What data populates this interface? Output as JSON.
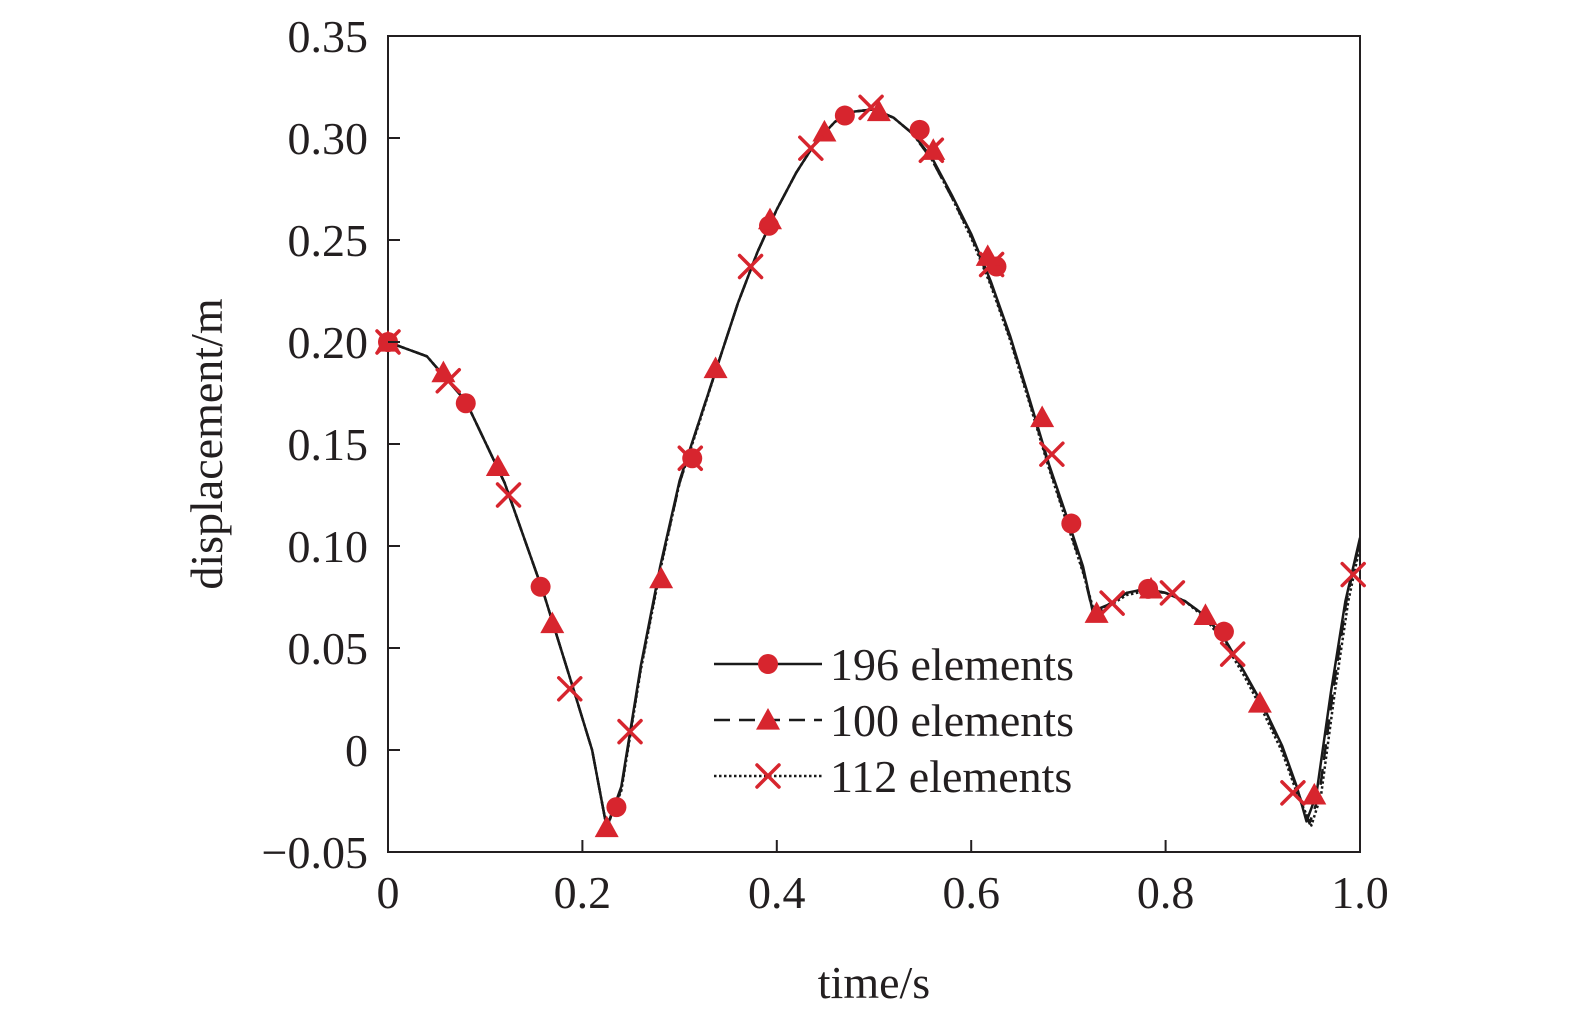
{
  "chart_data": {
    "type": "line",
    "title": "",
    "xlabel": "time/s",
    "ylabel": "displacement/m",
    "xlim": [
      0,
      1.0
    ],
    "ylim": [
      -0.05,
      0.35
    ],
    "x_ticks": [
      "0",
      "0.2",
      "0.4",
      "0.6",
      "0.8",
      "1.0"
    ],
    "x_tick_values": [
      0,
      0.2,
      0.4,
      0.6,
      0.8,
      1.0
    ],
    "y_ticks": [
      "−0.05",
      "0",
      "0.05",
      "0.10",
      "0.15",
      "0.20",
      "0.25",
      "0.30",
      "0.35"
    ],
    "y_tick_values": [
      -0.05,
      0,
      0.05,
      0.1,
      0.15,
      0.2,
      0.25,
      0.3,
      0.35
    ],
    "grid": false,
    "legend_position": "bottom-right",
    "marker_color": "#d7252e",
    "line_color": "#1a1a1a",
    "series": [
      {
        "name": "196 elements",
        "line_style": "solid",
        "marker": "circle",
        "curve": [
          [
            0,
            0.2
          ],
          [
            0.04,
            0.193
          ],
          [
            0.08,
            0.171
          ],
          [
            0.12,
            0.131
          ],
          [
            0.16,
            0.077
          ],
          [
            0.19,
            0.031
          ],
          [
            0.21,
            0.0
          ],
          [
            0.225,
            -0.038
          ],
          [
            0.24,
            -0.018
          ],
          [
            0.26,
            0.041
          ],
          [
            0.28,
            0.09
          ],
          [
            0.3,
            0.132
          ],
          [
            0.32,
            0.161
          ],
          [
            0.34,
            0.19
          ],
          [
            0.36,
            0.219
          ],
          [
            0.38,
            0.244
          ],
          [
            0.4,
            0.265
          ],
          [
            0.42,
            0.283
          ],
          [
            0.44,
            0.298
          ],
          [
            0.46,
            0.308
          ],
          [
            0.48,
            0.313
          ],
          [
            0.5,
            0.314
          ],
          [
            0.52,
            0.31
          ],
          [
            0.54,
            0.302
          ],
          [
            0.56,
            0.29
          ],
          [
            0.58,
            0.272
          ],
          [
            0.6,
            0.253
          ],
          [
            0.62,
            0.23
          ],
          [
            0.64,
            0.203
          ],
          [
            0.66,
            0.172
          ],
          [
            0.68,
            0.14
          ],
          [
            0.7,
            0.112
          ],
          [
            0.715,
            0.09
          ],
          [
            0.725,
            0.068
          ],
          [
            0.74,
            0.071
          ],
          [
            0.76,
            0.077
          ],
          [
            0.78,
            0.079
          ],
          [
            0.8,
            0.077
          ],
          [
            0.82,
            0.073
          ],
          [
            0.84,
            0.066
          ],
          [
            0.86,
            0.055
          ],
          [
            0.88,
            0.039
          ],
          [
            0.9,
            0.022
          ],
          [
            0.92,
            0.002
          ],
          [
            0.935,
            -0.018
          ],
          [
            0.945,
            -0.035
          ],
          [
            0.955,
            -0.022
          ],
          [
            0.97,
            0.028
          ],
          [
            0.985,
            0.073
          ],
          [
            1.0,
            0.104
          ]
        ],
        "markers": [
          [
            0,
            0.2
          ],
          [
            0.08,
            0.17
          ],
          [
            0.157,
            0.08
          ],
          [
            0.235,
            -0.028
          ],
          [
            0.313,
            0.143
          ],
          [
            0.392,
            0.257
          ],
          [
            0.47,
            0.311
          ],
          [
            0.547,
            0.304
          ],
          [
            0.626,
            0.237
          ],
          [
            0.703,
            0.111
          ],
          [
            0.782,
            0.079
          ],
          [
            0.86,
            0.058
          ]
        ]
      },
      {
        "name": "100 elements",
        "line_style": "dashed",
        "marker": "triangle",
        "curve": [
          [
            0,
            0.2
          ],
          [
            0.04,
            0.193
          ],
          [
            0.08,
            0.171
          ],
          [
            0.12,
            0.131
          ],
          [
            0.16,
            0.077
          ],
          [
            0.19,
            0.031
          ],
          [
            0.21,
            0.0
          ],
          [
            0.225,
            -0.038
          ],
          [
            0.24,
            -0.019
          ],
          [
            0.26,
            0.04
          ],
          [
            0.28,
            0.089
          ],
          [
            0.3,
            0.131
          ],
          [
            0.32,
            0.161
          ],
          [
            0.34,
            0.19
          ],
          [
            0.36,
            0.219
          ],
          [
            0.38,
            0.244
          ],
          [
            0.4,
            0.265
          ],
          [
            0.42,
            0.283
          ],
          [
            0.44,
            0.298
          ],
          [
            0.46,
            0.308
          ],
          [
            0.48,
            0.313
          ],
          [
            0.5,
            0.314
          ],
          [
            0.52,
            0.31
          ],
          [
            0.54,
            0.302
          ],
          [
            0.56,
            0.289
          ],
          [
            0.58,
            0.271
          ],
          [
            0.6,
            0.252
          ],
          [
            0.62,
            0.229
          ],
          [
            0.64,
            0.202
          ],
          [
            0.66,
            0.171
          ],
          [
            0.68,
            0.139
          ],
          [
            0.7,
            0.11
          ],
          [
            0.715,
            0.088
          ],
          [
            0.725,
            0.068
          ],
          [
            0.74,
            0.071
          ],
          [
            0.76,
            0.077
          ],
          [
            0.78,
            0.079
          ],
          [
            0.8,
            0.077
          ],
          [
            0.82,
            0.073
          ],
          [
            0.84,
            0.066
          ],
          [
            0.86,
            0.055
          ],
          [
            0.88,
            0.039
          ],
          [
            0.9,
            0.021
          ],
          [
            0.92,
            0.001
          ],
          [
            0.935,
            -0.019
          ],
          [
            0.948,
            -0.036
          ],
          [
            0.958,
            -0.022
          ],
          [
            0.972,
            0.028
          ],
          [
            0.986,
            0.073
          ],
          [
            1.0,
            0.103
          ]
        ],
        "markers": [
          [
            0,
            0.2
          ],
          [
            0.057,
            0.185
          ],
          [
            0.113,
            0.139
          ],
          [
            0.169,
            0.062
          ],
          [
            0.225,
            -0.038
          ],
          [
            0.281,
            0.084
          ],
          [
            0.337,
            0.187
          ],
          [
            0.393,
            0.26
          ],
          [
            0.449,
            0.303
          ],
          [
            0.505,
            0.313
          ],
          [
            0.561,
            0.294
          ],
          [
            0.617,
            0.242
          ],
          [
            0.673,
            0.163
          ],
          [
            0.729,
            0.067
          ],
          [
            0.785,
            0.079
          ],
          [
            0.841,
            0.066
          ],
          [
            0.897,
            0.023
          ],
          [
            0.953,
            -0.022
          ]
        ]
      },
      {
        "name": "112 elements",
        "line_style": "dotted",
        "marker": "x",
        "curve": [
          [
            0,
            0.2
          ],
          [
            0.04,
            0.193
          ],
          [
            0.08,
            0.171
          ],
          [
            0.12,
            0.131
          ],
          [
            0.16,
            0.077
          ],
          [
            0.19,
            0.031
          ],
          [
            0.21,
            0.0
          ],
          [
            0.225,
            -0.038
          ],
          [
            0.24,
            -0.02
          ],
          [
            0.26,
            0.039
          ],
          [
            0.28,
            0.088
          ],
          [
            0.3,
            0.131
          ],
          [
            0.32,
            0.16
          ],
          [
            0.34,
            0.19
          ],
          [
            0.36,
            0.219
          ],
          [
            0.38,
            0.244
          ],
          [
            0.4,
            0.265
          ],
          [
            0.42,
            0.283
          ],
          [
            0.44,
            0.298
          ],
          [
            0.46,
            0.308
          ],
          [
            0.48,
            0.313
          ],
          [
            0.5,
            0.314
          ],
          [
            0.52,
            0.31
          ],
          [
            0.54,
            0.302
          ],
          [
            0.56,
            0.289
          ],
          [
            0.58,
            0.271
          ],
          [
            0.6,
            0.251
          ],
          [
            0.62,
            0.228
          ],
          [
            0.64,
            0.201
          ],
          [
            0.66,
            0.17
          ],
          [
            0.68,
            0.138
          ],
          [
            0.7,
            0.109
          ],
          [
            0.715,
            0.087
          ],
          [
            0.727,
            0.067
          ],
          [
            0.74,
            0.07
          ],
          [
            0.76,
            0.076
          ],
          [
            0.78,
            0.078
          ],
          [
            0.8,
            0.077
          ],
          [
            0.82,
            0.073
          ],
          [
            0.84,
            0.065
          ],
          [
            0.86,
            0.053
          ],
          [
            0.88,
            0.037
          ],
          [
            0.9,
            0.019
          ],
          [
            0.92,
            -0.001
          ],
          [
            0.935,
            -0.021
          ],
          [
            0.95,
            -0.037
          ],
          [
            0.96,
            -0.022
          ],
          [
            0.974,
            0.028
          ],
          [
            0.988,
            0.073
          ],
          [
            1.0,
            0.1
          ]
        ],
        "markers": [
          [
            0,
            0.2
          ],
          [
            0.062,
            0.181
          ],
          [
            0.124,
            0.125
          ],
          [
            0.187,
            0.03
          ],
          [
            0.249,
            0.009
          ],
          [
            0.311,
            0.143
          ],
          [
            0.373,
            0.237
          ],
          [
            0.435,
            0.295
          ],
          [
            0.497,
            0.315
          ],
          [
            0.559,
            0.294
          ],
          [
            0.621,
            0.238
          ],
          [
            0.683,
            0.145
          ],
          [
            0.745,
            0.072
          ],
          [
            0.807,
            0.077
          ],
          [
            0.869,
            0.047
          ],
          [
            0.931,
            -0.021
          ],
          [
            0.993,
            0.086
          ]
        ]
      }
    ]
  }
}
